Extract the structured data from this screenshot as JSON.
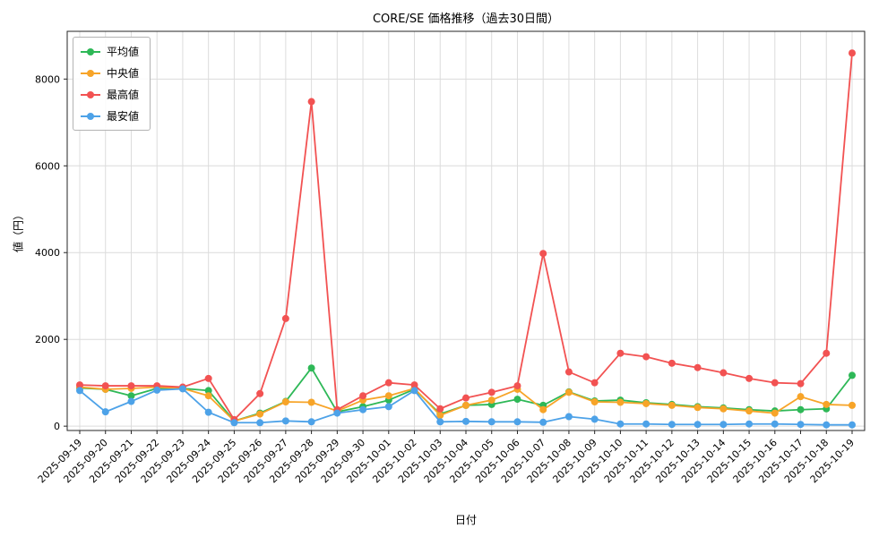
{
  "chart_data": {
    "type": "line",
    "title": "CORE/SE 価格推移（過去30日間）",
    "xlabel": "日付",
    "ylabel": "値（円）",
    "grid": true,
    "legend_position": "upper left",
    "yticks": [
      0,
      2000,
      4000,
      6000,
      8000
    ],
    "ylim": [
      -100,
      9100
    ],
    "categories": [
      "2025-09-19",
      "2025-09-20",
      "2025-09-21",
      "2025-09-22",
      "2025-09-23",
      "2025-09-24",
      "2025-09-25",
      "2025-09-26",
      "2025-09-27",
      "2025-09-28",
      "2025-09-29",
      "2025-09-30",
      "2025-10-01",
      "2025-10-02",
      "2025-10-03",
      "2025-10-04",
      "2025-10-05",
      "2025-10-06",
      "2025-10-07",
      "2025-10-08",
      "2025-10-09",
      "2025-10-10",
      "2025-10-11",
      "2025-10-12",
      "2025-10-13",
      "2025-10-14",
      "2025-10-15",
      "2025-10-16",
      "2025-10-17",
      "2025-10-18",
      "2025-10-19"
    ],
    "series": [
      {
        "key": "mean",
        "name": "平均値",
        "color": "#2eb857",
        "values": [
          880,
          850,
          700,
          870,
          870,
          820,
          120,
          300,
          570,
          1340,
          330,
          450,
          600,
          850,
          280,
          480,
          500,
          620,
          480,
          790,
          580,
          600,
          540,
          500,
          450,
          420,
          380,
          350,
          380,
          400,
          1170
        ]
      },
      {
        "key": "median",
        "name": "中央値",
        "color": "#f7a428",
        "values": [
          900,
          850,
          870,
          900,
          870,
          700,
          120,
          280,
          560,
          550,
          350,
          600,
          700,
          870,
          250,
          480,
          600,
          850,
          380,
          780,
          560,
          550,
          520,
          480,
          430,
          400,
          350,
          300,
          680,
          500,
          480
        ]
      },
      {
        "key": "max",
        "name": "最高値",
        "color": "#f25252",
        "values": [
          950,
          930,
          930,
          930,
          900,
          1100,
          150,
          750,
          2480,
          7480,
          380,
          700,
          1000,
          950,
          400,
          650,
          780,
          930,
          3980,
          1250,
          1000,
          1680,
          1600,
          1450,
          1350,
          1230,
          1100,
          1000,
          980,
          1680,
          8600
        ]
      },
      {
        "key": "min",
        "name": "最安値",
        "color": "#4da2e8",
        "values": [
          820,
          330,
          570,
          830,
          860,
          320,
          80,
          80,
          120,
          100,
          300,
          380,
          450,
          820,
          100,
          110,
          100,
          100,
          90,
          220,
          160,
          50,
          50,
          40,
          40,
          40,
          50,
          50,
          40,
          30,
          30
        ]
      }
    ]
  },
  "colors": {
    "grid": "#dcdcdc",
    "axis": "#262626",
    "background": "#ffffff"
  }
}
